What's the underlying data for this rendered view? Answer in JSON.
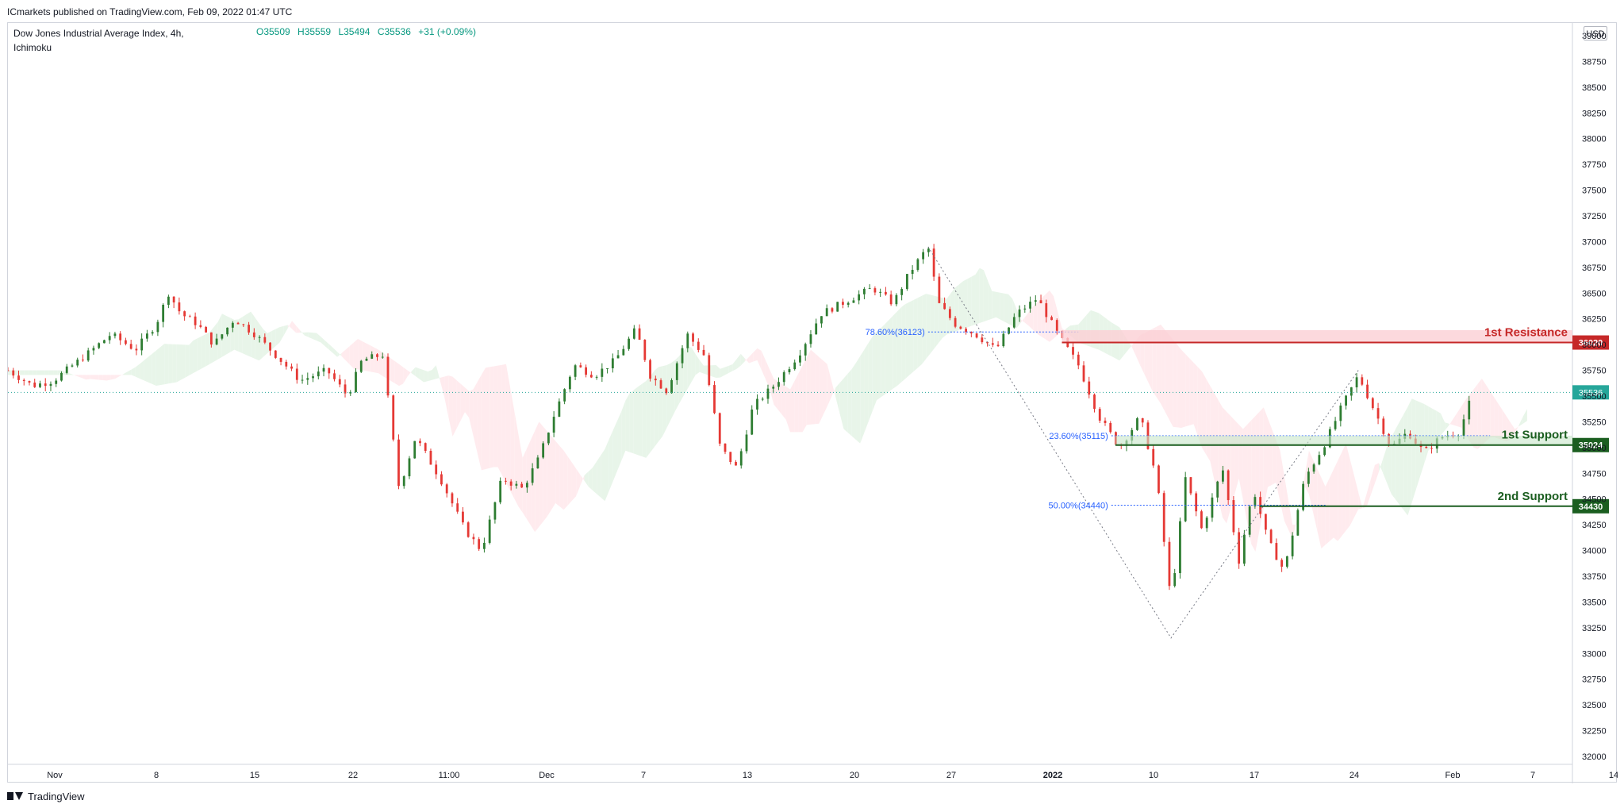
{
  "header": {
    "published": "ICmarkets published on TradingView.com, Feb 09, 2022 01:47 UTC"
  },
  "legend": {
    "symbol": "Dow Jones Industrial Average Index, 4h,",
    "indicator": "Ichimoku",
    "open": "O35509",
    "high": "H35559",
    "low": "L35494",
    "close": "C35536",
    "change": "+31 (+0.09%)"
  },
  "currency": "USD",
  "footer": {
    "brand": "TradingView"
  },
  "colors": {
    "up": "#26a69a",
    "up_candle": "#2e7d32",
    "down": "#e53935",
    "resistance": "#c62828",
    "support": "#1b5e20",
    "fib": "#2962ff",
    "cloud_bull": "#e8f5e9",
    "cloud_bear": "#ffebee"
  },
  "chart_data": {
    "type": "candlestick",
    "timeframe": "4h",
    "x_tick_labels": [
      "Nov",
      "8",
      "15",
      "22",
      "11:00",
      "Dec",
      "7",
      "13",
      "20",
      "27",
      "2022",
      "10",
      "17",
      "24",
      "Feb",
      "7",
      "14"
    ],
    "y_ticks": [
      32000,
      32250,
      32500,
      32750,
      33000,
      33250,
      33500,
      33750,
      34000,
      34250,
      34500,
      34750,
      35000,
      35250,
      35500,
      35750,
      36000,
      36250,
      36500,
      36750,
      37000,
      37250,
      37500,
      37750,
      38000,
      38250,
      38500,
      38750,
      39000
    ],
    "ylim": [
      32000,
      39000
    ],
    "last_price": 35536,
    "price_path": [
      [
        0,
        35750
      ],
      [
        12,
        35600
      ],
      [
        22,
        35650
      ],
      [
        38,
        35900
      ],
      [
        50,
        36100
      ],
      [
        62,
        35950
      ],
      [
        72,
        36200
      ],
      [
        78,
        36500
      ],
      [
        84,
        36300
      ],
      [
        92,
        36200
      ],
      [
        100,
        36000
      ],
      [
        110,
        36250
      ],
      [
        120,
        36100
      ],
      [
        130,
        35900
      ],
      [
        142,
        35650
      ],
      [
        155,
        35750
      ],
      [
        165,
        35500
      ],
      [
        172,
        35850
      ],
      [
        182,
        35900
      ],
      [
        190,
        34600
      ],
      [
        198,
        35100
      ],
      [
        210,
        34700
      ],
      [
        222,
        34200
      ],
      [
        230,
        34000
      ],
      [
        240,
        34700
      ],
      [
        250,
        34600
      ],
      [
        258,
        34900
      ],
      [
        265,
        35300
      ],
      [
        275,
        35800
      ],
      [
        285,
        35700
      ],
      [
        295,
        35850
      ],
      [
        305,
        36150
      ],
      [
        312,
        35700
      ],
      [
        320,
        35550
      ],
      [
        330,
        36100
      ],
      [
        338,
        35900
      ],
      [
        346,
        35000
      ],
      [
        354,
        34800
      ],
      [
        362,
        35400
      ],
      [
        372,
        35600
      ],
      [
        384,
        35900
      ],
      [
        395,
        36300
      ],
      [
        410,
        36450
      ],
      [
        420,
        36550
      ],
      [
        430,
        36400
      ],
      [
        438,
        36700
      ],
      [
        447,
        36950
      ],
      [
        452,
        36400
      ],
      [
        460,
        36200
      ],
      [
        470,
        36100
      ],
      [
        480,
        35950
      ],
      [
        490,
        36300
      ],
      [
        500,
        36450
      ],
      [
        510,
        36100
      ],
      [
        520,
        35800
      ],
      [
        530,
        35300
      ],
      [
        540,
        35000
      ],
      [
        550,
        35300
      ],
      [
        558,
        34700
      ],
      [
        565,
        33500
      ],
      [
        572,
        34700
      ],
      [
        580,
        34200
      ],
      [
        590,
        34800
      ],
      [
        598,
        33900
      ],
      [
        605,
        34600
      ],
      [
        612,
        34100
      ],
      [
        620,
        33800
      ],
      [
        630,
        34700
      ],
      [
        640,
        35050
      ],
      [
        648,
        35400
      ],
      [
        656,
        35700
      ],
      [
        664,
        35350
      ],
      [
        672,
        35000
      ],
      [
        680,
        35150
      ],
      [
        688,
        34950
      ],
      [
        696,
        35100
      ],
      [
        705,
        35150
      ],
      [
        712,
        35550
      ]
    ],
    "fib_lines": [
      {
        "label": "78.60%(36123)",
        "price": 36123
      },
      {
        "label": "23.60%(35115)",
        "price": 35115
      },
      {
        "label": "50.00%(34440)",
        "price": 34440
      }
    ],
    "levels": [
      {
        "name": "1st Resistance",
        "price": 36020,
        "price_label": "36020",
        "kind": "resistance"
      },
      {
        "name": "1st Support",
        "price": 35024,
        "price_label": "35024",
        "kind": "support"
      },
      {
        "name": "2nd Support",
        "price": 34430,
        "price_label": "34430",
        "kind": "support"
      }
    ],
    "last_price_label": "35536"
  }
}
